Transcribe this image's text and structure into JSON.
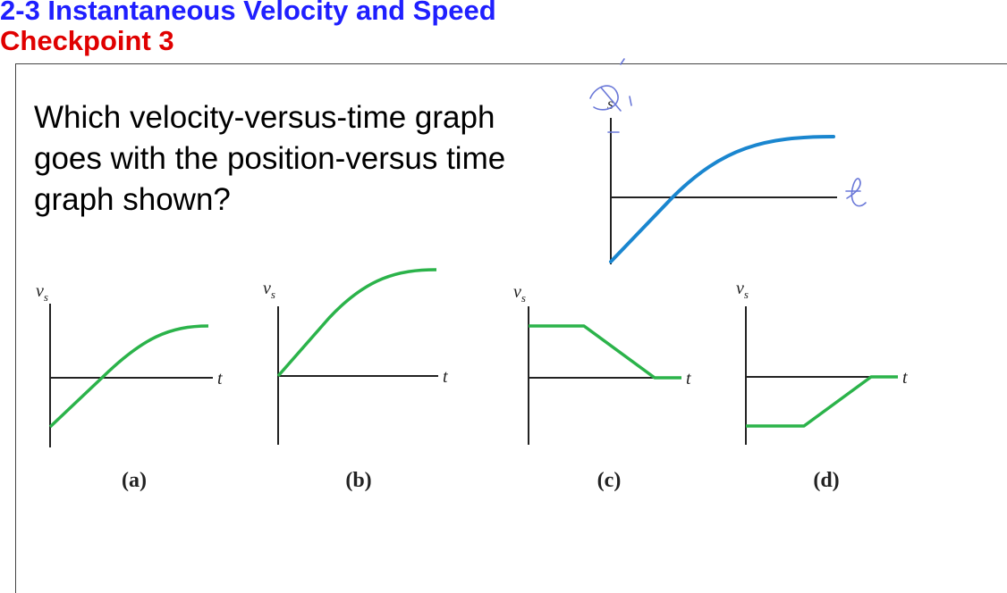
{
  "slide": {
    "section_title": "2-3 Instantaneous Velocity and Speed",
    "checkpoint_title": "Checkpoint 3",
    "question": "Which velocity-versus-time graph goes with the position-versus time graph shown?"
  },
  "position_graph": {
    "y_axis_label": "s",
    "x_axis_label": "t",
    "curve_color": "#1a86cf",
    "annotations": "handwritten x and t marks"
  },
  "options": [
    {
      "label": "(a)",
      "y_axis_label": "v",
      "y_axis_sub": "s",
      "x_axis_label": "t"
    },
    {
      "label": "(b)",
      "y_axis_label": "v",
      "y_axis_sub": "s",
      "x_axis_label": "t"
    },
    {
      "label": "(c)",
      "y_axis_label": "v",
      "y_axis_sub": "s",
      "x_axis_label": "t"
    },
    {
      "label": "(d)",
      "y_axis_label": "v",
      "y_axis_sub": "s",
      "x_axis_label": "t"
    }
  ],
  "colors": {
    "section_title": "#1f1fff",
    "checkpoint_title": "#e00000",
    "velocity_curve": "#2bb34a",
    "axes": "#222222"
  }
}
